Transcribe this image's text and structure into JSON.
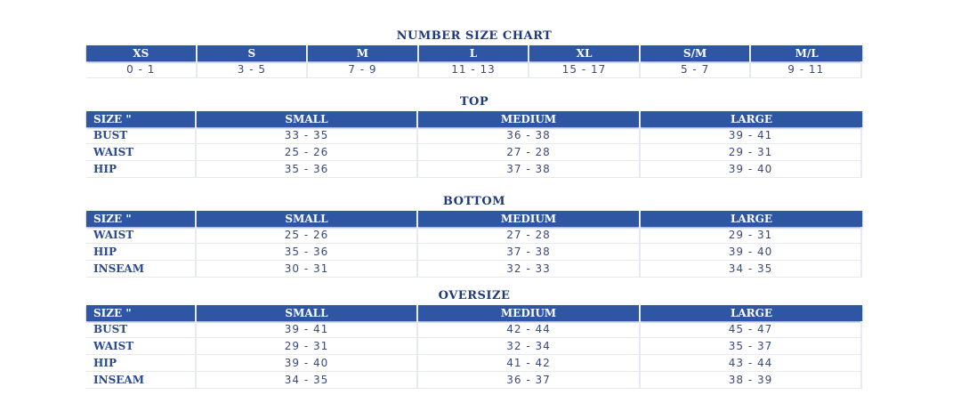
{
  "number_chart": {
    "title": "NUMBER SIZE CHART",
    "headers": [
      "XS",
      "S",
      "M",
      "L",
      "XL",
      "S/M",
      "M/L"
    ],
    "values": [
      "0 - 1",
      "3 - 5",
      "7 - 9",
      "11 - 13",
      "15 - 17",
      "5 - 7",
      "9 - 11"
    ]
  },
  "top": {
    "title": "TOP",
    "headers": [
      "SIZE \"",
      "SMALL",
      "MEDIUM",
      "LARGE"
    ],
    "rows": [
      [
        "BUST",
        "33 - 35",
        "36 - 38",
        "39 - 41"
      ],
      [
        "WAIST",
        "25 - 26",
        "27 - 28",
        "29 - 31"
      ],
      [
        "HIP",
        "35 - 36",
        "37 - 38",
        "39 - 40"
      ]
    ]
  },
  "bottom": {
    "title": "BOTTOM",
    "headers": [
      "SIZE \"",
      "SMALL",
      "MEDIUM",
      "LARGE"
    ],
    "rows": [
      [
        "WAIST",
        "25 - 26",
        "27 - 28",
        "29 - 31"
      ],
      [
        "HIP",
        "35 - 36",
        "37 - 38",
        "39 - 40"
      ],
      [
        "INSEAM",
        "30 - 31",
        "32 - 33",
        "34 - 35"
      ]
    ]
  },
  "oversize": {
    "title": "OVERSIZE",
    "headers": [
      "SIZE \"",
      "SMALL",
      "MEDIUM",
      "LARGE"
    ],
    "rows": [
      [
        "BUST",
        "39 - 41",
        "42 - 44",
        "45 - 47"
      ],
      [
        "WAIST",
        "29 - 31",
        "32 - 34",
        "35 - 37"
      ],
      [
        "HIP",
        "39 - 40",
        "41 - 42",
        "43 - 44"
      ],
      [
        "INSEAM",
        "34 - 35",
        "36 - 37",
        "38 - 39"
      ]
    ]
  },
  "colors": {
    "header_bg": "#2f56a3",
    "title": "#1f3a7a"
  }
}
